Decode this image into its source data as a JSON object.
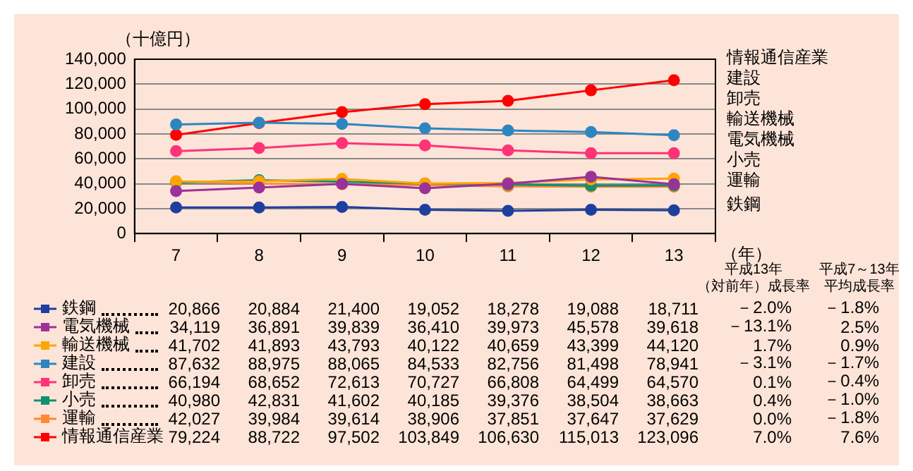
{
  "chart_data": {
    "type": "line",
    "ylabel": "（十億円）",
    "xlabel": "（年）",
    "categories": [
      "7",
      "8",
      "9",
      "10",
      "11",
      "12",
      "13"
    ],
    "series": [
      {
        "name": "鉄鋼",
        "color": "#1f3f9f",
        "values": [
          20866,
          20884,
          21400,
          19052,
          18278,
          19088,
          18711
        ],
        "value_labels": [
          "20,866",
          "20,884",
          "21,400",
          "19,052",
          "18,278",
          "19,088",
          "18,711"
        ]
      },
      {
        "name": "電気機械",
        "color": "#993399",
        "values": [
          34119,
          36891,
          39839,
          36410,
          39973,
          45578,
          39618
        ],
        "value_labels": [
          "34,119",
          "36,891",
          "39,839",
          "36,410",
          "39,973",
          "45,578",
          "39,618"
        ]
      },
      {
        "name": "輸送機械",
        "color": "#ffa500",
        "values": [
          41702,
          41893,
          43793,
          40122,
          40659,
          43399,
          44120
        ],
        "value_labels": [
          "41,702",
          "41,893",
          "43,793",
          "40,122",
          "40,659",
          "43,399",
          "44,120"
        ]
      },
      {
        "name": "建設",
        "color": "#2e86c1",
        "values": [
          87632,
          88975,
          88065,
          84533,
          82756,
          81498,
          78941
        ],
        "value_labels": [
          "87,632",
          "88,975",
          "88,065",
          "84,533",
          "82,756",
          "81,498",
          "78,941"
        ]
      },
      {
        "name": "卸売",
        "color": "#ff3377",
        "values": [
          66194,
          68652,
          72613,
          70727,
          66808,
          64499,
          64570
        ],
        "value_labels": [
          "66,194",
          "68,652",
          "72,613",
          "70,727",
          "66,808",
          "64,499",
          "64,570"
        ]
      },
      {
        "name": "小売",
        "color": "#129070",
        "values": [
          40980,
          42831,
          41602,
          40185,
          39376,
          38504,
          38663
        ],
        "value_labels": [
          "40,980",
          "42,831",
          "41,602",
          "40,185",
          "39,376",
          "38,504",
          "38,663"
        ]
      },
      {
        "name": "運輸",
        "color": "#ff8833",
        "values": [
          42027,
          39984,
          39614,
          38906,
          37851,
          37647,
          37629
        ],
        "value_labels": [
          "42,027",
          "39,984",
          "39,614",
          "38,906",
          "37,851",
          "37,647",
          "37,629"
        ]
      },
      {
        "name": "情報通信産業",
        "color": "#ff0000",
        "values": [
          79224,
          88722,
          97502,
          103849,
          106630,
          115013,
          123096
        ],
        "value_labels": [
          "79,224",
          "88,722",
          "97,502",
          "103,849",
          "106,630",
          "115,013",
          "123,096"
        ]
      }
    ],
    "ylim": [
      0,
      140000
    ],
    "yticks": [
      0,
      {
        "value": 20000,
        "label": "20,000"
      },
      {
        "value": 40000,
        "label": "40,000"
      },
      {
        "value": 60000,
        "label": "60,000"
      },
      {
        "value": 80000,
        "label": "80,000"
      },
      {
        "value": 100000,
        "label": "100,000"
      },
      {
        "value": 120000,
        "label": "120,000"
      },
      {
        "value": 140000,
        "label": "140,000"
      }
    ],
    "grid": "y",
    "marker": "circle",
    "line_style": "solid",
    "legend": "bottom",
    "annotations": [
      "平成13年",
      "（対前年）成長率",
      "平成7～13年",
      "平均成長率",
      "－2.0%",
      "－1.8%",
      "－13.1%",
      "2.5%",
      "1.7%",
      "0.9%",
      "－3.1%",
      "－1.7%",
      "0.1%",
      "－0.4%",
      "0.4%",
      "－1.0%",
      "0.0%",
      "－1.8%",
      "7.0%",
      "7.6%"
    ]
  }
}
